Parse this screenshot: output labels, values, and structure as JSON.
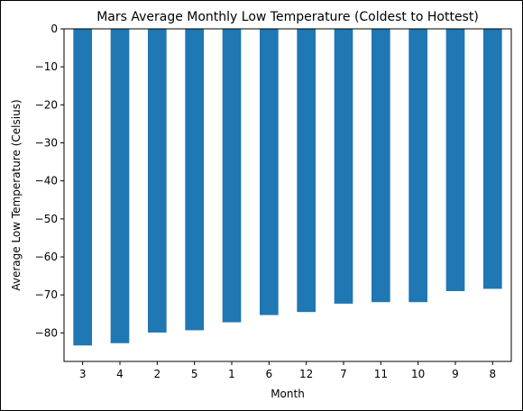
{
  "chart_data": {
    "type": "bar",
    "title": "Mars Average Monthly Low Temperature (Coldest to Hottest)",
    "xlabel": "Month",
    "ylabel": "Average Low Temperature (Celsius)",
    "categories": [
      "3",
      "4",
      "2",
      "5",
      "1",
      "6",
      "12",
      "7",
      "11",
      "10",
      "9",
      "8"
    ],
    "values": [
      -83.3,
      -82.7,
      -79.9,
      -79.3,
      -77.2,
      -75.3,
      -74.5,
      -72.3,
      -71.9,
      -71.9,
      -69.0,
      -68.4
    ],
    "ylim": [
      -87.5,
      0
    ],
    "yticks": [
      0,
      -10,
      -20,
      -30,
      -40,
      -50,
      -60,
      -70,
      -80
    ],
    "ytick_labels": [
      "0",
      "−10",
      "−20",
      "−30",
      "−40",
      "−50",
      "−60",
      "−70",
      "−80"
    ],
    "grid": false,
    "legend": "none",
    "bar_color": "#1f77b4"
  }
}
